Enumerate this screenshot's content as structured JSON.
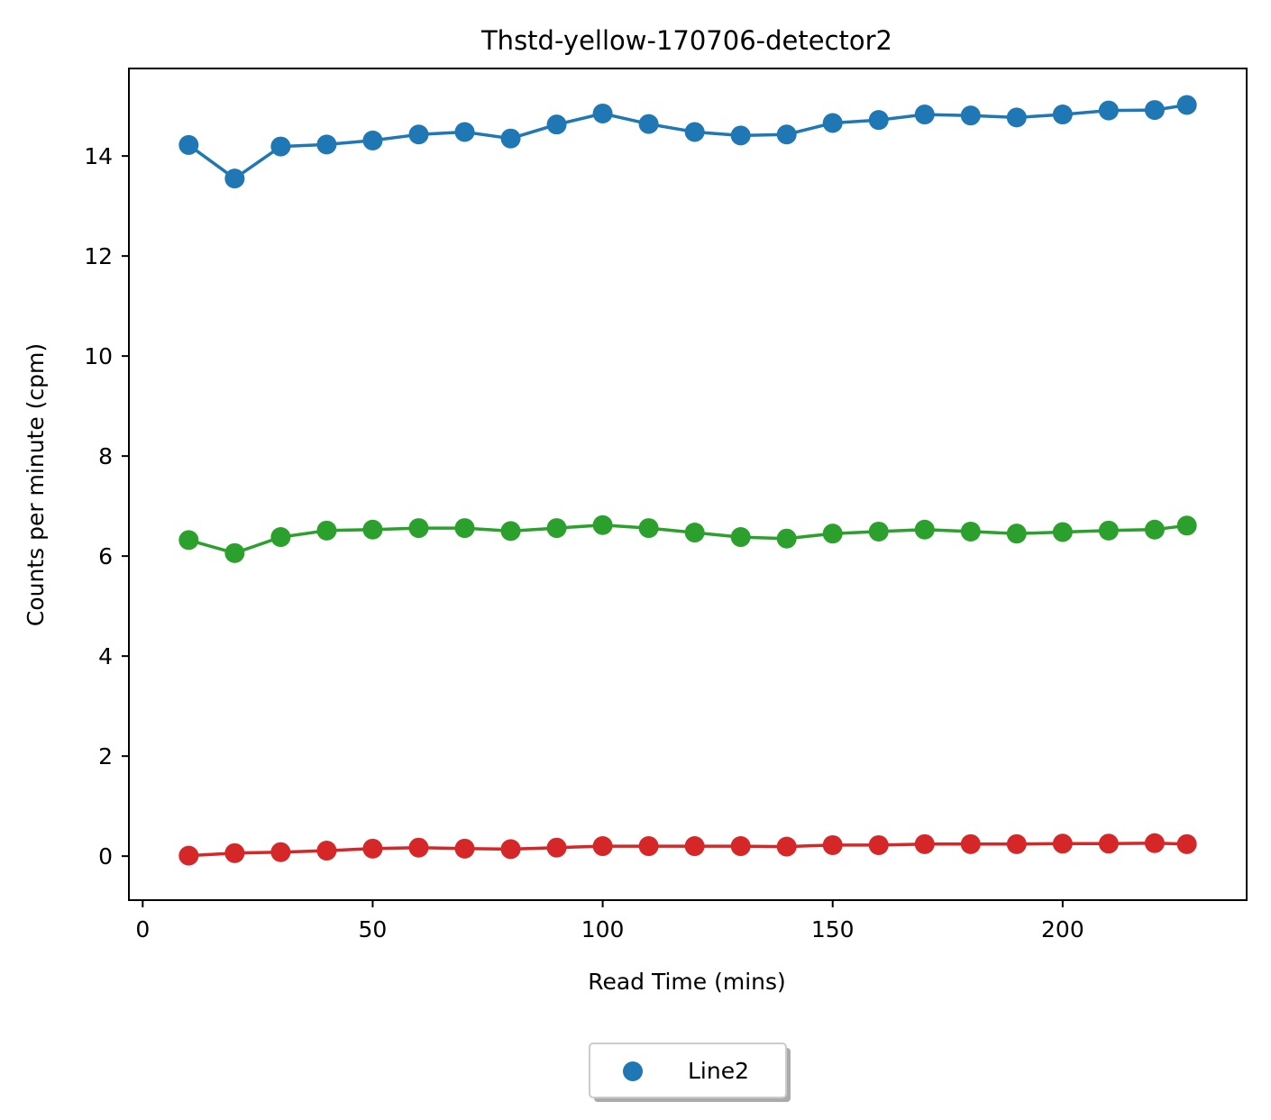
{
  "chart_data": {
    "type": "line",
    "title": "Thstd-yellow-170706-detector2",
    "xlabel": "Read Time (mins)",
    "ylabel": "Counts per minute (cpm)",
    "xlim": [
      -3,
      240
    ],
    "ylim": [
      -0.88,
      15.75
    ],
    "xticks": [
      0,
      50,
      100,
      150,
      200
    ],
    "yticks": [
      0,
      2,
      4,
      6,
      8,
      10,
      12,
      14
    ],
    "grid": false,
    "legend": {
      "placement": "bottom-center",
      "entries": [
        "Line2"
      ]
    },
    "x": [
      10,
      20,
      30,
      40,
      50,
      60,
      70,
      80,
      90,
      100,
      110,
      120,
      130,
      140,
      150,
      160,
      170,
      180,
      190,
      200,
      210,
      220,
      227
    ],
    "series": [
      {
        "color": "#1f77b4",
        "values": [
          14.22,
          13.55,
          14.19,
          14.23,
          14.31,
          14.43,
          14.48,
          14.35,
          14.63,
          14.85,
          14.64,
          14.48,
          14.41,
          14.43,
          14.66,
          14.72,
          14.83,
          14.81,
          14.77,
          14.83,
          14.91,
          14.92,
          15.02
        ]
      },
      {
        "color": "#2ca02c",
        "values": [
          6.32,
          6.06,
          6.38,
          6.51,
          6.53,
          6.56,
          6.56,
          6.5,
          6.56,
          6.62,
          6.56,
          6.47,
          6.38,
          6.35,
          6.45,
          6.49,
          6.53,
          6.49,
          6.45,
          6.48,
          6.51,
          6.53,
          6.61
        ]
      },
      {
        "color": "#d62728",
        "values": [
          0.01,
          0.06,
          0.08,
          0.11,
          0.15,
          0.17,
          0.15,
          0.14,
          0.17,
          0.2,
          0.2,
          0.2,
          0.2,
          0.19,
          0.22,
          0.22,
          0.24,
          0.24,
          0.24,
          0.25,
          0.25,
          0.26,
          0.24
        ]
      }
    ]
  }
}
